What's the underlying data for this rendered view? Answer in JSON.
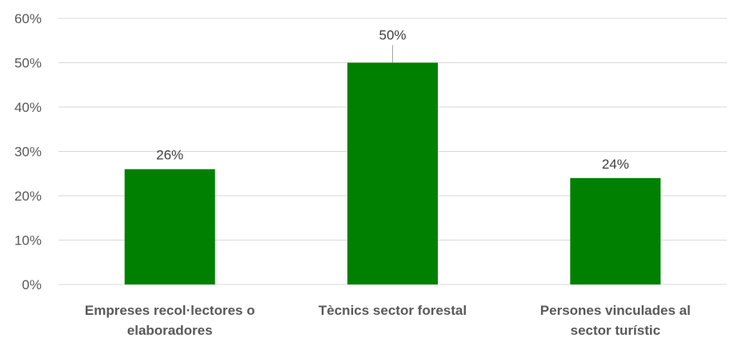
{
  "chart_data": {
    "type": "bar",
    "categories": [
      [
        "Empreses recol·lectores o",
        "elaboradores"
      ],
      [
        "Tècnics sector forestal"
      ],
      [
        "Persones vinculades al",
        "sector turístic"
      ]
    ],
    "values": [
      26,
      50,
      24
    ],
    "data_labels": [
      "26%",
      "50%",
      "24%"
    ],
    "ylim": [
      0,
      60
    ],
    "y_ticks": [
      0,
      10,
      20,
      30,
      40,
      50,
      60
    ],
    "y_tick_labels": [
      "0%",
      "10%",
      "20%",
      "30%",
      "40%",
      "50%",
      "60%"
    ],
    "bar_color": "#008000",
    "grid": true,
    "legend": "none",
    "title": "",
    "xlabel": "",
    "ylabel": ""
  }
}
